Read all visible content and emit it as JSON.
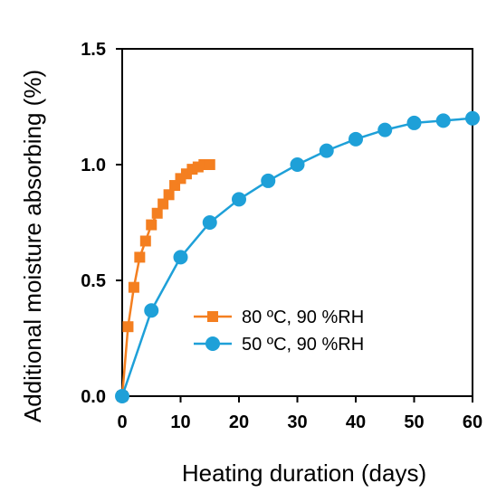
{
  "chart_data": {
    "type": "line",
    "title": "",
    "xlabel": "Heating duration (days)",
    "ylabel": "Additional moisture absorbing (%)",
    "xlim": [
      0,
      60
    ],
    "ylim": [
      0,
      1.5
    ],
    "xticks": [
      0,
      10,
      20,
      30,
      40,
      50,
      60
    ],
    "yticks": [
      0.0,
      0.5,
      1.0,
      1.5
    ],
    "xtick_labels": [
      "0",
      "10",
      "20",
      "30",
      "40",
      "50",
      "60"
    ],
    "ytick_labels": [
      "0.0",
      "0.5",
      "1.0",
      "1.5"
    ],
    "grid": false,
    "legend_position": "center-right",
    "series": [
      {
        "name": "80 ºC, 90 %RH",
        "color": "#F47F20",
        "marker": "square",
        "x": [
          0,
          1,
          2,
          3,
          4,
          5,
          6,
          7,
          8,
          9,
          10,
          11,
          12,
          13,
          14,
          15
        ],
        "y": [
          0.0,
          0.3,
          0.47,
          0.6,
          0.67,
          0.74,
          0.79,
          0.83,
          0.87,
          0.91,
          0.94,
          0.96,
          0.98,
          0.99,
          1.0,
          1.0
        ]
      },
      {
        "name": "50 ºC, 90 %RH",
        "color": "#1EA0D8",
        "marker": "circle",
        "x": [
          0,
          5,
          10,
          15,
          20,
          25,
          30,
          35,
          40,
          45,
          50,
          55,
          60
        ],
        "y": [
          0.0,
          0.37,
          0.6,
          0.75,
          0.85,
          0.93,
          1.0,
          1.06,
          1.11,
          1.15,
          1.18,
          1.19,
          1.2
        ]
      }
    ]
  }
}
